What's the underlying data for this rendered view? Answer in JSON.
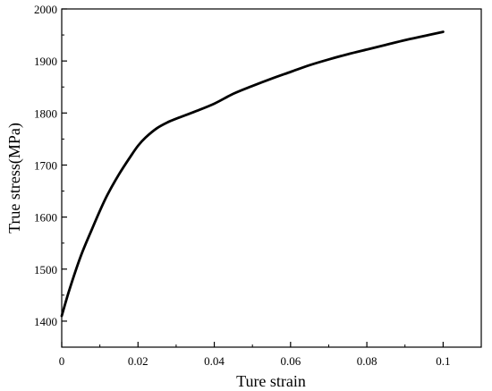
{
  "chart_data": {
    "type": "line",
    "title": "",
    "xlabel": "Ture strain",
    "ylabel": "True stress(MPa)",
    "xlim": [
      0,
      0.11
    ],
    "ylim": [
      1350,
      2000
    ],
    "x_ticks": [
      0,
      0.02,
      0.04,
      0.06,
      0.08,
      0.1
    ],
    "x_tick_labels": [
      "0",
      "0.02",
      "0.04",
      "0.06",
      "0.08",
      "0.1"
    ],
    "y_ticks": [
      1400,
      1500,
      1600,
      1700,
      1800,
      1900,
      2000
    ],
    "y_tick_labels": [
      "1400",
      "1500",
      "1600",
      "1700",
      "1800",
      "1900",
      "2000"
    ],
    "grid": false,
    "legend": "none",
    "line_color": "#000000",
    "series": [
      {
        "x": [
          0,
          0.002,
          0.005,
          0.008,
          0.01,
          0.012,
          0.015,
          0.018,
          0.02,
          0.022,
          0.025,
          0.028,
          0.03,
          0.035,
          0.04,
          0.045,
          0.05,
          0.055,
          0.06,
          0.065,
          0.07,
          0.075,
          0.08,
          0.085,
          0.09,
          0.095,
          0.1
        ],
        "y": [
          1410,
          1460,
          1525,
          1578,
          1612,
          1643,
          1682,
          1716,
          1737,
          1753,
          1771,
          1783,
          1789,
          1803,
          1818,
          1837,
          1852,
          1866,
          1879,
          1892,
          1903,
          1913,
          1922,
          1931,
          1940,
          1948,
          1956
        ]
      }
    ]
  }
}
